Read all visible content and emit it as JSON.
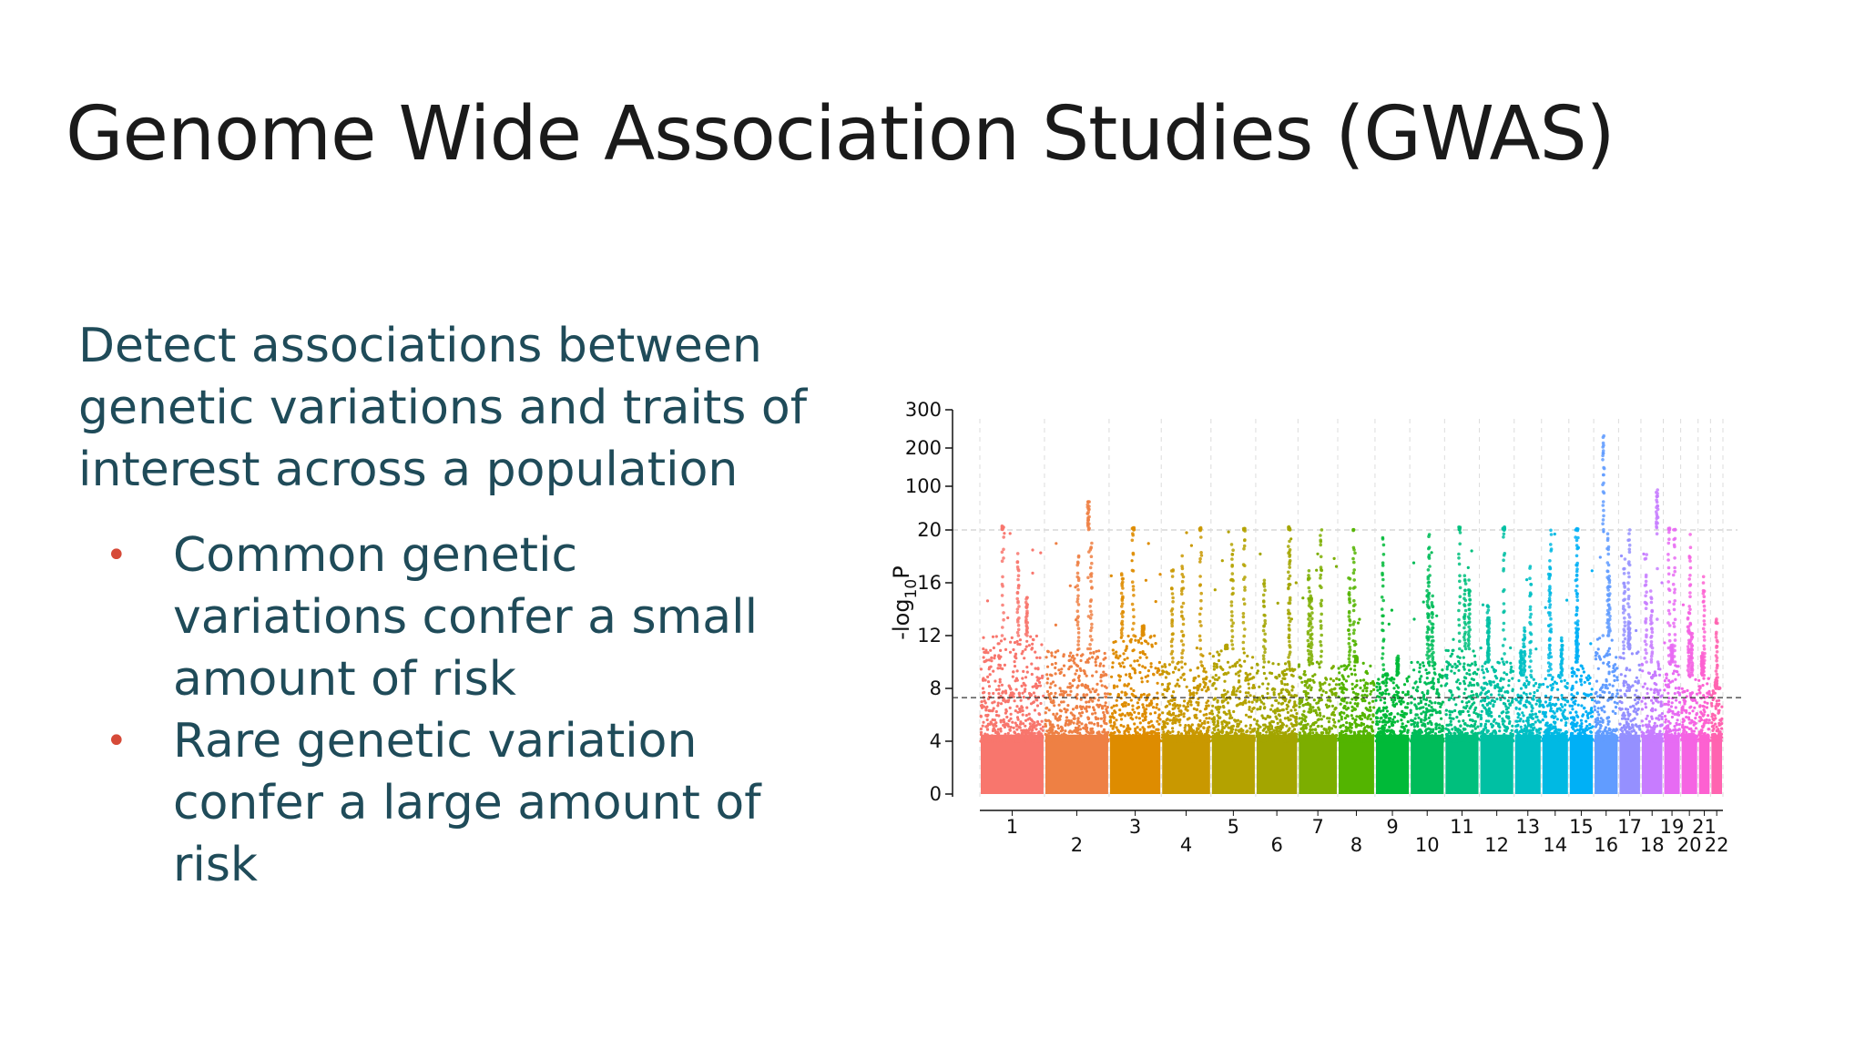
{
  "slide": {
    "title": "Genome Wide Association Studies (GWAS)",
    "lead": "Detect associations between genetic variations and traits of interest across a population",
    "bullets": [
      "Common genetic variations confer a small amount of risk",
      "Rare genetic variation confer a large amount of risk"
    ],
    "bullet_color": "#d64a38",
    "text_color": "#1f4b59"
  },
  "chart_data": {
    "type": "scatter",
    "subtype": "manhattan",
    "title": "",
    "xlabel": "",
    "ylabel_main": "-log",
    "ylabel_sub": "10",
    "ylabel_end": "P",
    "y_scale": "broken: linear 0-20, compressed 20-300",
    "y_ticks": [
      "0",
      "4",
      "8",
      "12",
      "16",
      "20",
      "100",
      "200",
      "300"
    ],
    "y_tick_values": [
      0,
      4,
      8,
      12,
      16,
      20,
      100,
      200,
      300
    ],
    "significance_threshold": 7.3,
    "grid": "vertical dashed lines at chromosome boundaries; horizontal dashed line at 20",
    "chromosomes": [
      {
        "label": "1",
        "color": "#f8766d",
        "peak": 28,
        "base": 12
      },
      {
        "label": "2",
        "color": "#ee8044",
        "peak": 80,
        "base": 11
      },
      {
        "label": "3",
        "color": "#de8c00",
        "peak": 25,
        "base": 12
      },
      {
        "label": "4",
        "color": "#c99800",
        "peak": 24,
        "base": 10
      },
      {
        "label": "5",
        "color": "#b4a200",
        "peak": 24,
        "base": 11
      },
      {
        "label": "6",
        "color": "#a3a500",
        "peak": 26,
        "base": 10
      },
      {
        "label": "7",
        "color": "#7cae00",
        "peak": 21,
        "base": 10
      },
      {
        "label": "8",
        "color": "#53b400",
        "peak": 21,
        "base": 10
      },
      {
        "label": "9",
        "color": "#00ba38",
        "peak": 20,
        "base": 9
      },
      {
        "label": "10",
        "color": "#00bc59",
        "peak": 21,
        "base": 10
      },
      {
        "label": "11",
        "color": "#00bf7d",
        "peak": 26,
        "base": 11
      },
      {
        "label": "12",
        "color": "#00c0a3",
        "peak": 26,
        "base": 10
      },
      {
        "label": "13",
        "color": "#00bfc4",
        "peak": 18,
        "base": 9
      },
      {
        "label": "14",
        "color": "#00b9e3",
        "peak": 21,
        "base": 9
      },
      {
        "label": "15",
        "color": "#00b0f6",
        "peak": 23,
        "base": 10
      },
      {
        "label": "16",
        "color": "#619cff",
        "peak": 260,
        "base": 12
      },
      {
        "label": "17",
        "color": "#9590ff",
        "peak": 21,
        "base": 11
      },
      {
        "label": "18",
        "color": "#c77cff",
        "peak": 100,
        "base": 10
      },
      {
        "label": "19",
        "color": "#e76bf3",
        "peak": 24,
        "base": 10
      },
      {
        "label": "20",
        "color": "#f564e3",
        "peak": 20,
        "base": 9
      },
      {
        "label": "21",
        "color": "#fd61d1",
        "peak": 17,
        "base": 9
      },
      {
        "label": "22",
        "color": "#ff64b0",
        "peak": 14,
        "base": 8
      }
    ]
  }
}
